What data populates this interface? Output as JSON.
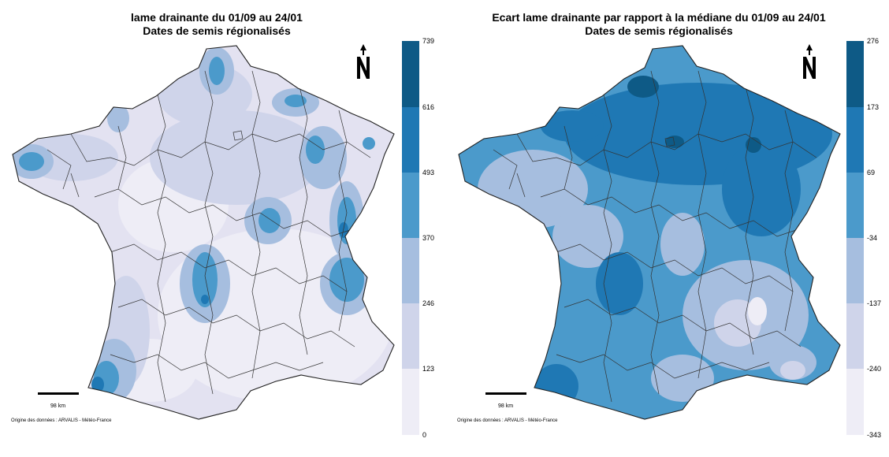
{
  "maps": [
    {
      "title_line1": "lame drainante du 01/09 au 24/01",
      "title_line2": "Dates de semis régionalisés",
      "legend_ticks": [
        "739",
        "616",
        "493",
        "370",
        "246",
        "123",
        "0"
      ],
      "legend_colors": [
        "#0e5a86",
        "#1f78b4",
        "#4b9acb",
        "#a6bedf",
        "#cfd4ea",
        "#eeedf6"
      ],
      "scale_label": "98 km",
      "source": "Origine des données : ARVALIS - Météo-France",
      "base_fill": "#e3e2f1"
    },
    {
      "title_line1": "Ecart lame drainante par rapport à la médiane du 01/09 au 24/01",
      "title_line2": "Dates de semis régionalisés",
      "legend_ticks": [
        "276",
        "173",
        "69",
        "-34",
        "-137",
        "-240",
        "-343"
      ],
      "legend_colors": [
        "#0e5a86",
        "#1f78b4",
        "#4b9acb",
        "#a6bedf",
        "#cfd4ea",
        "#eeedf6"
      ],
      "scale_label": "98 km",
      "source": "Origine des données : ARVALIS - Météo-France",
      "base_fill": "#3f8ec6"
    }
  ]
}
